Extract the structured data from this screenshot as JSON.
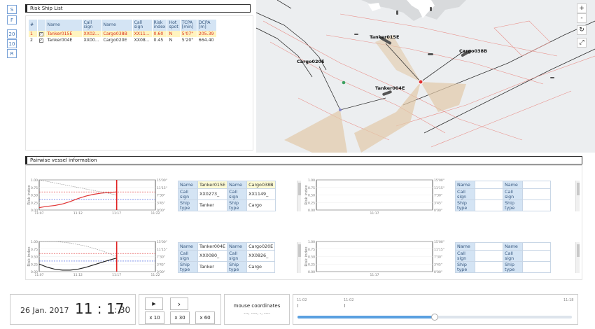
{
  "side_buttons": [
    "S",
    "F",
    "20",
    "10",
    "R"
  ],
  "risk_panel": {
    "title": "Risk Ship List",
    "columns": [
      "#",
      "",
      "Name",
      "Call sign",
      "Name",
      "Call sign",
      "Risk index",
      "Hot spot",
      "TCPA [min]",
      "DCPA [m]"
    ],
    "rows": [
      {
        "num": "1",
        "check": "✓",
        "name1": "Tanker015E",
        "call1": "XX02...",
        "name2": "Cargo038B",
        "call2": "XX11...",
        "risk": "0.60",
        "hot": "N",
        "tcpa": "5'07\"",
        "dcpa": "205.39"
      },
      {
        "num": "2",
        "check": "✓",
        "name1": "Tanker004E",
        "call1": "XX00...",
        "name2": "Cargo020E",
        "call2": "XX08...",
        "risk": "0.45",
        "hot": "N",
        "tcpa": "5'20\"",
        "dcpa": "664.40"
      }
    ]
  },
  "map": {
    "labels": {
      "tanker015e": "Tanker015E",
      "cargo038b": "Cargo038B",
      "cargo020e": "Cargo020E",
      "tanker004e": "Tanker004E"
    },
    "controls": {
      "zoom_in": "+",
      "zoom_out": "-",
      "reset": "↻",
      "fullscreen": "⤢"
    }
  },
  "pair_panel": {
    "title": "Pairwise vessel information",
    "charts": [
      {
        "y_ticks": [
          "1.00",
          "0.75",
          "0.50",
          "0.25",
          "0.00"
        ],
        "right_ticks": [
          "15'00\"",
          "11'15\"",
          "7'30\"",
          "3'45\"",
          "0'00\""
        ],
        "x_ticks": [
          "11:07",
          "11:12",
          "11:17",
          "11:22"
        ],
        "ylabel": "Risk index",
        "ylabel2": "TCPA"
      },
      {
        "y_ticks": [
          "1.00",
          "0.75",
          "0.50",
          "0.25",
          "0.00"
        ],
        "right_ticks": [
          "15'00\"",
          "11'15\"",
          "7'30\"",
          "3'45\"",
          "0'00\""
        ],
        "x_ticks": [
          "11:17"
        ],
        "ylabel": "Risk index",
        "ylabel2": "TCPA"
      },
      {
        "y_ticks": [
          "1.00",
          "0.75",
          "0.50",
          "0.25",
          "0.00"
        ],
        "right_ticks": [
          "15'00\"",
          "11'15\"",
          "7'30\"",
          "3'45\"",
          "0'00\""
        ],
        "x_ticks": [
          "11:07",
          "11:12",
          "11:17",
          "11:22"
        ],
        "ylabel": "Risk index",
        "ylabel2": "TCPA"
      },
      {
        "y_ticks": [
          "1.00",
          "0.75",
          "0.50",
          "0.25",
          "0.00"
        ],
        "right_ticks": [
          "15'00\"",
          "11'15\"",
          "7'30\"",
          "3'45\"",
          "0'00\""
        ],
        "x_ticks": [
          "11:17"
        ],
        "ylabel": "Risk index",
        "ylabel2": "TCPA"
      }
    ],
    "info_tables": [
      {
        "labels": [
          "Name",
          "Call sign",
          "Ship type"
        ],
        "a": [
          "Tanker015E",
          "XX0273_",
          "Tanker"
        ],
        "b": [
          "Cargo038B",
          "XX1149_",
          "Cargo"
        ]
      },
      {
        "labels": [
          "Name",
          "Call sign",
          "Ship type"
        ],
        "a": [
          "",
          "",
          ""
        ],
        "b": [
          "",
          "",
          ""
        ]
      },
      {
        "labels": [
          "Name",
          "Call sign",
          "Ship type"
        ],
        "a": [
          "Tanker004E",
          "XX0080_",
          "Tanker"
        ],
        "b": [
          "Cargo020E",
          "XX0826_",
          "Cargo"
        ]
      },
      {
        "labels": [
          "Name",
          "Call sign",
          "Ship type"
        ],
        "a": [
          "",
          "",
          ""
        ],
        "b": [
          "",
          "",
          ""
        ]
      }
    ]
  },
  "bottom": {
    "date": "26 Jan. 2017",
    "hour_min": "11 : 17",
    "seconds": ": 30",
    "play": "▶",
    "step": "›",
    "speed": [
      "x 10",
      "x 30",
      "x 60"
    ],
    "mouse_title": "mouse coordinates",
    "mouse_value": "---, ----, -, ----",
    "slider_ticks": [
      "11:02",
      "11:02",
      "11:18"
    ],
    "slider_value": 0.5
  },
  "chart_data": [
    {
      "type": "line",
      "title": "",
      "xlabel": "",
      "ylabel": "Risk index",
      "ylabel2": "TCPA",
      "x_range": [
        "11:07",
        "11:22"
      ],
      "ylim": [
        0,
        1
      ],
      "series": [
        {
          "x": [
            "11:07",
            "11:08",
            "11:09",
            "11:10",
            "11:11",
            "11:12",
            "11:13",
            "11:14",
            "11:15",
            "11:16",
            "11:17"
          ],
          "values": [
            0.08,
            0.12,
            0.15,
            0.2,
            0.28,
            0.38,
            0.46,
            0.52,
            0.56,
            0.58,
            0.6
          ],
          "color": "#e03030"
        },
        {
          "x": [
            "11:07",
            "11:09",
            "11:11",
            "11:13",
            "11:15",
            "11:17"
          ],
          "values": [
            1.0,
            0.9,
            0.8,
            0.7,
            0.6,
            0.5
          ],
          "color": "#888888",
          "dashed": true
        }
      ],
      "reference_lines": [
        {
          "y": 0.6,
          "color": "#e03030",
          "dashed": true
        },
        {
          "y": 0.35,
          "color": "#3050e0",
          "dashed": true
        }
      ],
      "current_time": "11:17"
    },
    {
      "type": "line",
      "title": "",
      "xlabel": "",
      "ylabel": "Risk index",
      "ylabel2": "TCPA",
      "x_range": [
        "11:07",
        "11:22"
      ],
      "ylim": [
        0,
        1
      ],
      "series": [
        {
          "x": [
            "11:07",
            "11:08",
            "11:09",
            "11:10",
            "11:11",
            "11:12",
            "11:13",
            "11:14",
            "11:15",
            "11:16",
            "11:17"
          ],
          "values": [
            0.25,
            0.15,
            0.08,
            0.05,
            0.05,
            0.08,
            0.14,
            0.22,
            0.3,
            0.38,
            0.45
          ],
          "color": "#222222"
        },
        {
          "x": [
            "11:07",
            "11:09",
            "11:11",
            "11:13",
            "11:15",
            "11:17"
          ],
          "values": [
            1.0,
            1.0,
            0.95,
            0.85,
            0.7,
            0.5
          ],
          "color": "#888888",
          "dashed": true
        }
      ],
      "reference_lines": [
        {
          "y": 0.6,
          "color": "#e03030",
          "dashed": true
        },
        {
          "y": 0.35,
          "color": "#3050e0",
          "dashed": true
        }
      ],
      "current_time": "11:17"
    }
  ]
}
